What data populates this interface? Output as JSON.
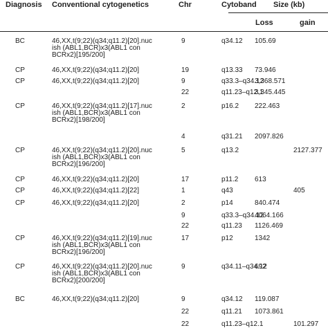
{
  "headers": {
    "diagnosis": "Diagnosis",
    "cytogenetics": "Conventional cytogenetics",
    "chr": "Chr",
    "cytoband": "Cytoband",
    "size": "Size (kb)",
    "loss": "Loss",
    "gain": "gain"
  },
  "rows": [
    {
      "diagnosis": "BC",
      "cytogenetics": "46,XX,t(9;22)(q34;q11.2)[20].nuc\nish (ABL1,BCR)x3(ABL1 con\nBCRx2)[195/200]",
      "chr": "9",
      "cytoband": "q34.12",
      "loss": "105.69",
      "gain": ""
    },
    {
      "diagnosis": "CP",
      "cytogenetics": "46,XX,t(9;22)(q34;q11.2)[20]",
      "chr": "19",
      "cytoband": "q13.33",
      "loss": "73.946",
      "gain": ""
    },
    {
      "diagnosis": "CP",
      "cytogenetics": "46,XX,t(9;22)(q34;q11.2)[20]",
      "chr": "9",
      "cytoband": "q33.3–q34.12",
      "loss": "3,368.571",
      "gain": ""
    },
    {
      "diagnosis": "",
      "cytogenetics": "",
      "chr": "22",
      "cytoband": "q11.23–q12.1",
      "loss": "3,345.445",
      "gain": ""
    },
    {
      "diagnosis": "CP",
      "cytogenetics": "46,XX,t(9;22)(q34;q11.2)[17].nuc\nish (ABL1,BCR)x3(ABL1 con\nBCRx2)[198/200]",
      "chr": "2",
      "cytoband": "p16.2",
      "loss": "222.463",
      "gain": ""
    },
    {
      "diagnosis": "",
      "cytogenetics": "",
      "chr": "4",
      "cytoband": "q31.21",
      "loss": "2097.826",
      "gain": ""
    },
    {
      "diagnosis": "CP",
      "cytogenetics": "46,XX,t(9;22)(q34;q11.2)[20].nuc\nish (ABL1,BCR)x3(ABL1 con\nBCRx2)[196/200]",
      "chr": "5",
      "cytoband": "q13.2",
      "loss": "",
      "gain": "2127.377"
    },
    {
      "diagnosis": "CP",
      "cytogenetics": "46,XX,t(9;22)(q34;q11.2)[20]",
      "chr": "17",
      "cytoband": "p11.2",
      "loss": "613",
      "gain": ""
    },
    {
      "diagnosis": "CP",
      "cytogenetics": "46,XX,t(9;22)(q34;q11.2)[22]",
      "chr": "1",
      "cytoband": "q43",
      "loss": "",
      "gain": "405"
    },
    {
      "diagnosis": "CP",
      "cytogenetics": "46,XX,t(9;22)(q34;q11.2)[20]",
      "chr": "2",
      "cytoband": "p14",
      "loss": "840.474",
      "gain": ""
    },
    {
      "diagnosis": "",
      "cytogenetics": "",
      "chr": "9",
      "cytoband": "q33.3–q34.12",
      "loss": "4064.166",
      "gain": ""
    },
    {
      "diagnosis": "",
      "cytogenetics": "",
      "chr": "22",
      "cytoband": "q11.23",
      "loss": "1126.469",
      "gain": ""
    },
    {
      "diagnosis": "CP",
      "cytogenetics": "46,XX,t(9;22)(q34;q11.2)[19].nuc\nish (ABL1,BCR)x3(ABL1 con\nBCRx2)[196/200]",
      "chr": "17",
      "cytoband": "p12",
      "loss": "1342",
      "gain": ""
    },
    {
      "diagnosis": "CP",
      "cytogenetics": "46,XX,t(9;22)(q34;q11.2)[20].nuc\nish (ABL1,BCR)x3(ABL1 con\nBCRx2)[200/200]",
      "chr": "9",
      "cytoband": "q34.11–q34.12",
      "loss": "692",
      "gain": ""
    },
    {
      "diagnosis": "BC",
      "cytogenetics": "46,XX,t(9;22)(q34;q11.2)[20]",
      "chr": "9",
      "cytoband": "q34.12",
      "loss": "119.087",
      "gain": ""
    },
    {
      "diagnosis": "",
      "cytogenetics": "",
      "chr": "22",
      "cytoband": "q11.21",
      "loss": "1073.861",
      "gain": ""
    },
    {
      "diagnosis": "",
      "cytogenetics": "",
      "chr": "22",
      "cytoband": "q11.23–q12.1",
      "loss": "",
      "gain": "101.297"
    }
  ]
}
